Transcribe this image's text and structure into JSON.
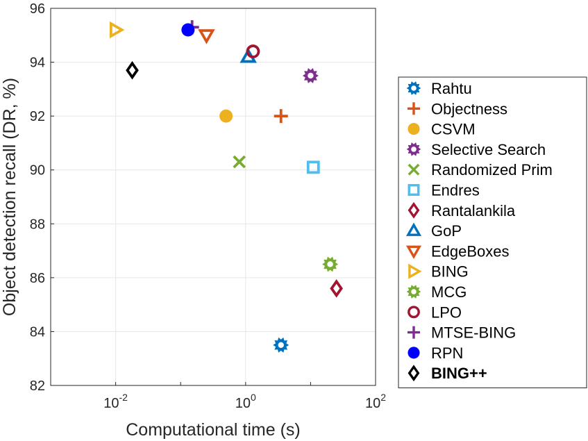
{
  "chart_data": {
    "type": "scatter",
    "xlabel": "Computational time (s)",
    "ylabel": "Object detection recall (DR, %)",
    "xscale": "log",
    "xlim": [
      0.001,
      100
    ],
    "ylim": [
      82,
      96
    ],
    "xticks": [
      {
        "base": "10",
        "exp": "-2",
        "value": 0.01
      },
      {
        "base": "10",
        "exp": "0",
        "value": 1
      },
      {
        "base": "10",
        "exp": "2",
        "value": 100
      }
    ],
    "yticks": [
      "82",
      "84",
      "86",
      "88",
      "90",
      "92",
      "94",
      "96"
    ],
    "grid": true,
    "legend_position": "right",
    "series": [
      {
        "name": "Rahtu",
        "marker": "sun",
        "color": "#0072BD",
        "x": 3.5,
        "y": 83.5
      },
      {
        "name": "Objectness",
        "marker": "plus",
        "color": "#D95319",
        "x": 3.5,
        "y": 92.0
      },
      {
        "name": "CSVM",
        "marker": "circle",
        "color": "#EDB120",
        "x": 0.5,
        "y": 92.0
      },
      {
        "name": "Selective Search",
        "marker": "sun",
        "color": "#7E2F8E",
        "x": 10,
        "y": 93.5
      },
      {
        "name": "Randomized Prim",
        "marker": "x",
        "color": "#77AC30",
        "x": 0.8,
        "y": 90.3
      },
      {
        "name": "Endres",
        "marker": "square",
        "color": "#4DBEEE",
        "x": 11,
        "y": 90.1
      },
      {
        "name": "Rantalankila",
        "marker": "diamond",
        "color": "#A2142F",
        "x": 25,
        "y": 85.6
      },
      {
        "name": "GoP",
        "marker": "triangle-up",
        "color": "#0072BD",
        "x": 1.1,
        "y": 94.2
      },
      {
        "name": "EdgeBoxes",
        "marker": "triangle-down",
        "color": "#D95319",
        "x": 0.25,
        "y": 95.0
      },
      {
        "name": "BING",
        "marker": "triangle-right",
        "color": "#EDB120",
        "x": 0.01,
        "y": 95.2
      },
      {
        "name": "MCG",
        "marker": "sun",
        "color": "#77AC30",
        "x": 20,
        "y": 86.5
      },
      {
        "name": "LPO",
        "marker": "ring",
        "color": "#A2142F",
        "x": 1.3,
        "y": 94.4
      },
      {
        "name": "MTSE-BING",
        "marker": "plus",
        "color": "#7E2F8E",
        "x": 0.15,
        "y": 95.3
      },
      {
        "name": "RPN",
        "marker": "circle",
        "color": "#0000FF",
        "x": 0.13,
        "y": 95.2
      },
      {
        "name": "BING++",
        "marker": "diamond-bold",
        "color": "#000000",
        "x": 0.018,
        "y": 93.7,
        "bold": true
      }
    ]
  }
}
